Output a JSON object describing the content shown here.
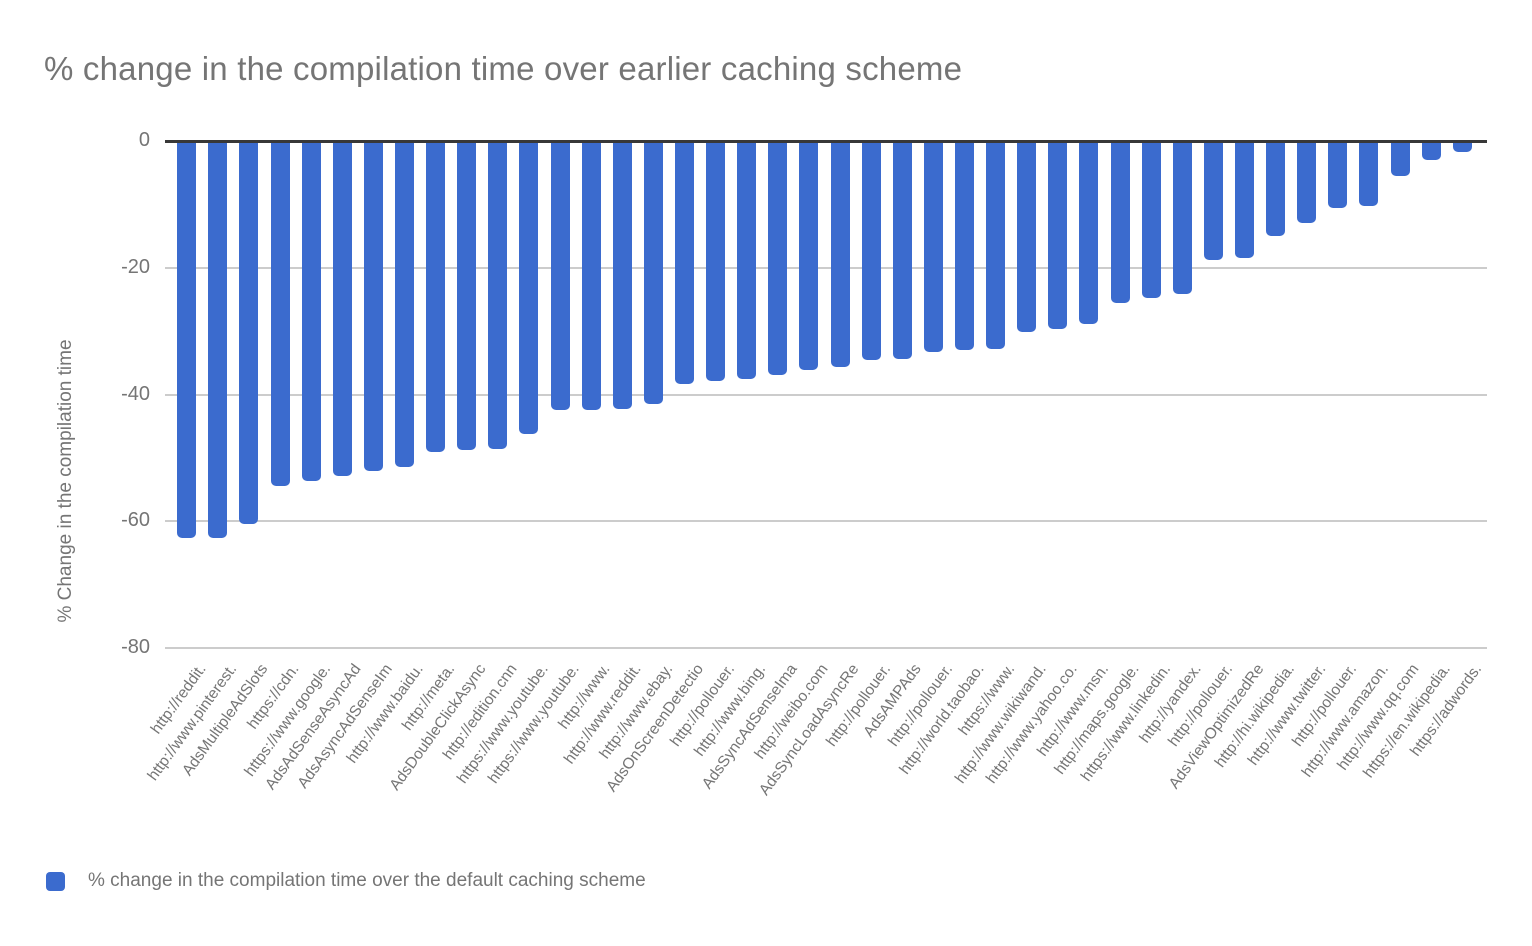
{
  "title": "% change in the compilation time over earlier caching scheme",
  "y_axis": {
    "title": "% Change in the compilation time",
    "ticks": [
      "0",
      "-20",
      "-40",
      "-60",
      "-80"
    ]
  },
  "legend": {
    "label": "% change in the compilation time over the default caching scheme"
  },
  "colors": {
    "bar": "#3b6bce",
    "grid": "#cccccc",
    "axis_line": "#383838",
    "text": "#757575"
  },
  "chart_data": {
    "type": "bar",
    "title": "% change in the compilation time over earlier caching scheme",
    "xlabel": "",
    "ylabel": "% Change in the compilation time",
    "ylim": [
      -80,
      0
    ],
    "grid": true,
    "legend_position": "bottom",
    "legend_entries": [
      "% change in the compilation time over the default caching scheme"
    ],
    "categories": [
      "http://reddit.",
      "http://www.pinterest.",
      "AdsMultipleAdSlots",
      "https://cdn.",
      "https://www.google.",
      "AdsAdSenseAsyncAd",
      "AdsAsyncAdSenseIm",
      "http://www.baidu.",
      "http://meta.",
      "AdsDoubleClickAsync",
      "http://edition.cnn",
      "https://www.youtube.",
      "https://www.youtube.",
      "http://www.",
      "http://www.reddit.",
      "http://www.ebay.",
      "AdsOnScreenDetectio",
      "http://pollouer.",
      "http://www.bing.",
      "AdsSyncAdSenseIma",
      "http://weibo.com",
      "AdsSyncLoadAsyncRe",
      "http://pollouer.",
      "AdsAMPAds",
      "http://pollouer.",
      "http://world.taobao.",
      "https://www.",
      "http://www.wikiwand.",
      "http://www.yahoo.co.",
      "http://www.msn.",
      "http://maps.google.",
      "https://www.linkedin.",
      "http://yandex.",
      "http://pollouer.",
      "AdsViewOptimizedRe",
      "http://hi.wikipedia.",
      "http://www.twitter.",
      "http://pollouer.",
      "http://www.amazon.",
      "http://www.qq.com",
      "https://en.wikipedia.",
      "https://adwords."
    ],
    "values": [
      -62.6,
      -62.6,
      -60.4,
      -54.4,
      -53.7,
      -52.9,
      -52.1,
      -51.5,
      -49.1,
      -48.8,
      -48.6,
      -46.3,
      -42.5,
      -42.4,
      -42.3,
      -41.5,
      -38.3,
      -37.8,
      -37.6,
      -36.9,
      -36.1,
      -35.7,
      -34.6,
      -34.4,
      -33.3,
      -33.0,
      -32.8,
      -30.2,
      -29.7,
      -28.8,
      -25.6,
      -24.8,
      -24.2,
      -18.8,
      -18.5,
      -15.0,
      -13.0,
      -10.5,
      -10.3,
      -5.6,
      -3.0,
      -1.8
    ]
  }
}
